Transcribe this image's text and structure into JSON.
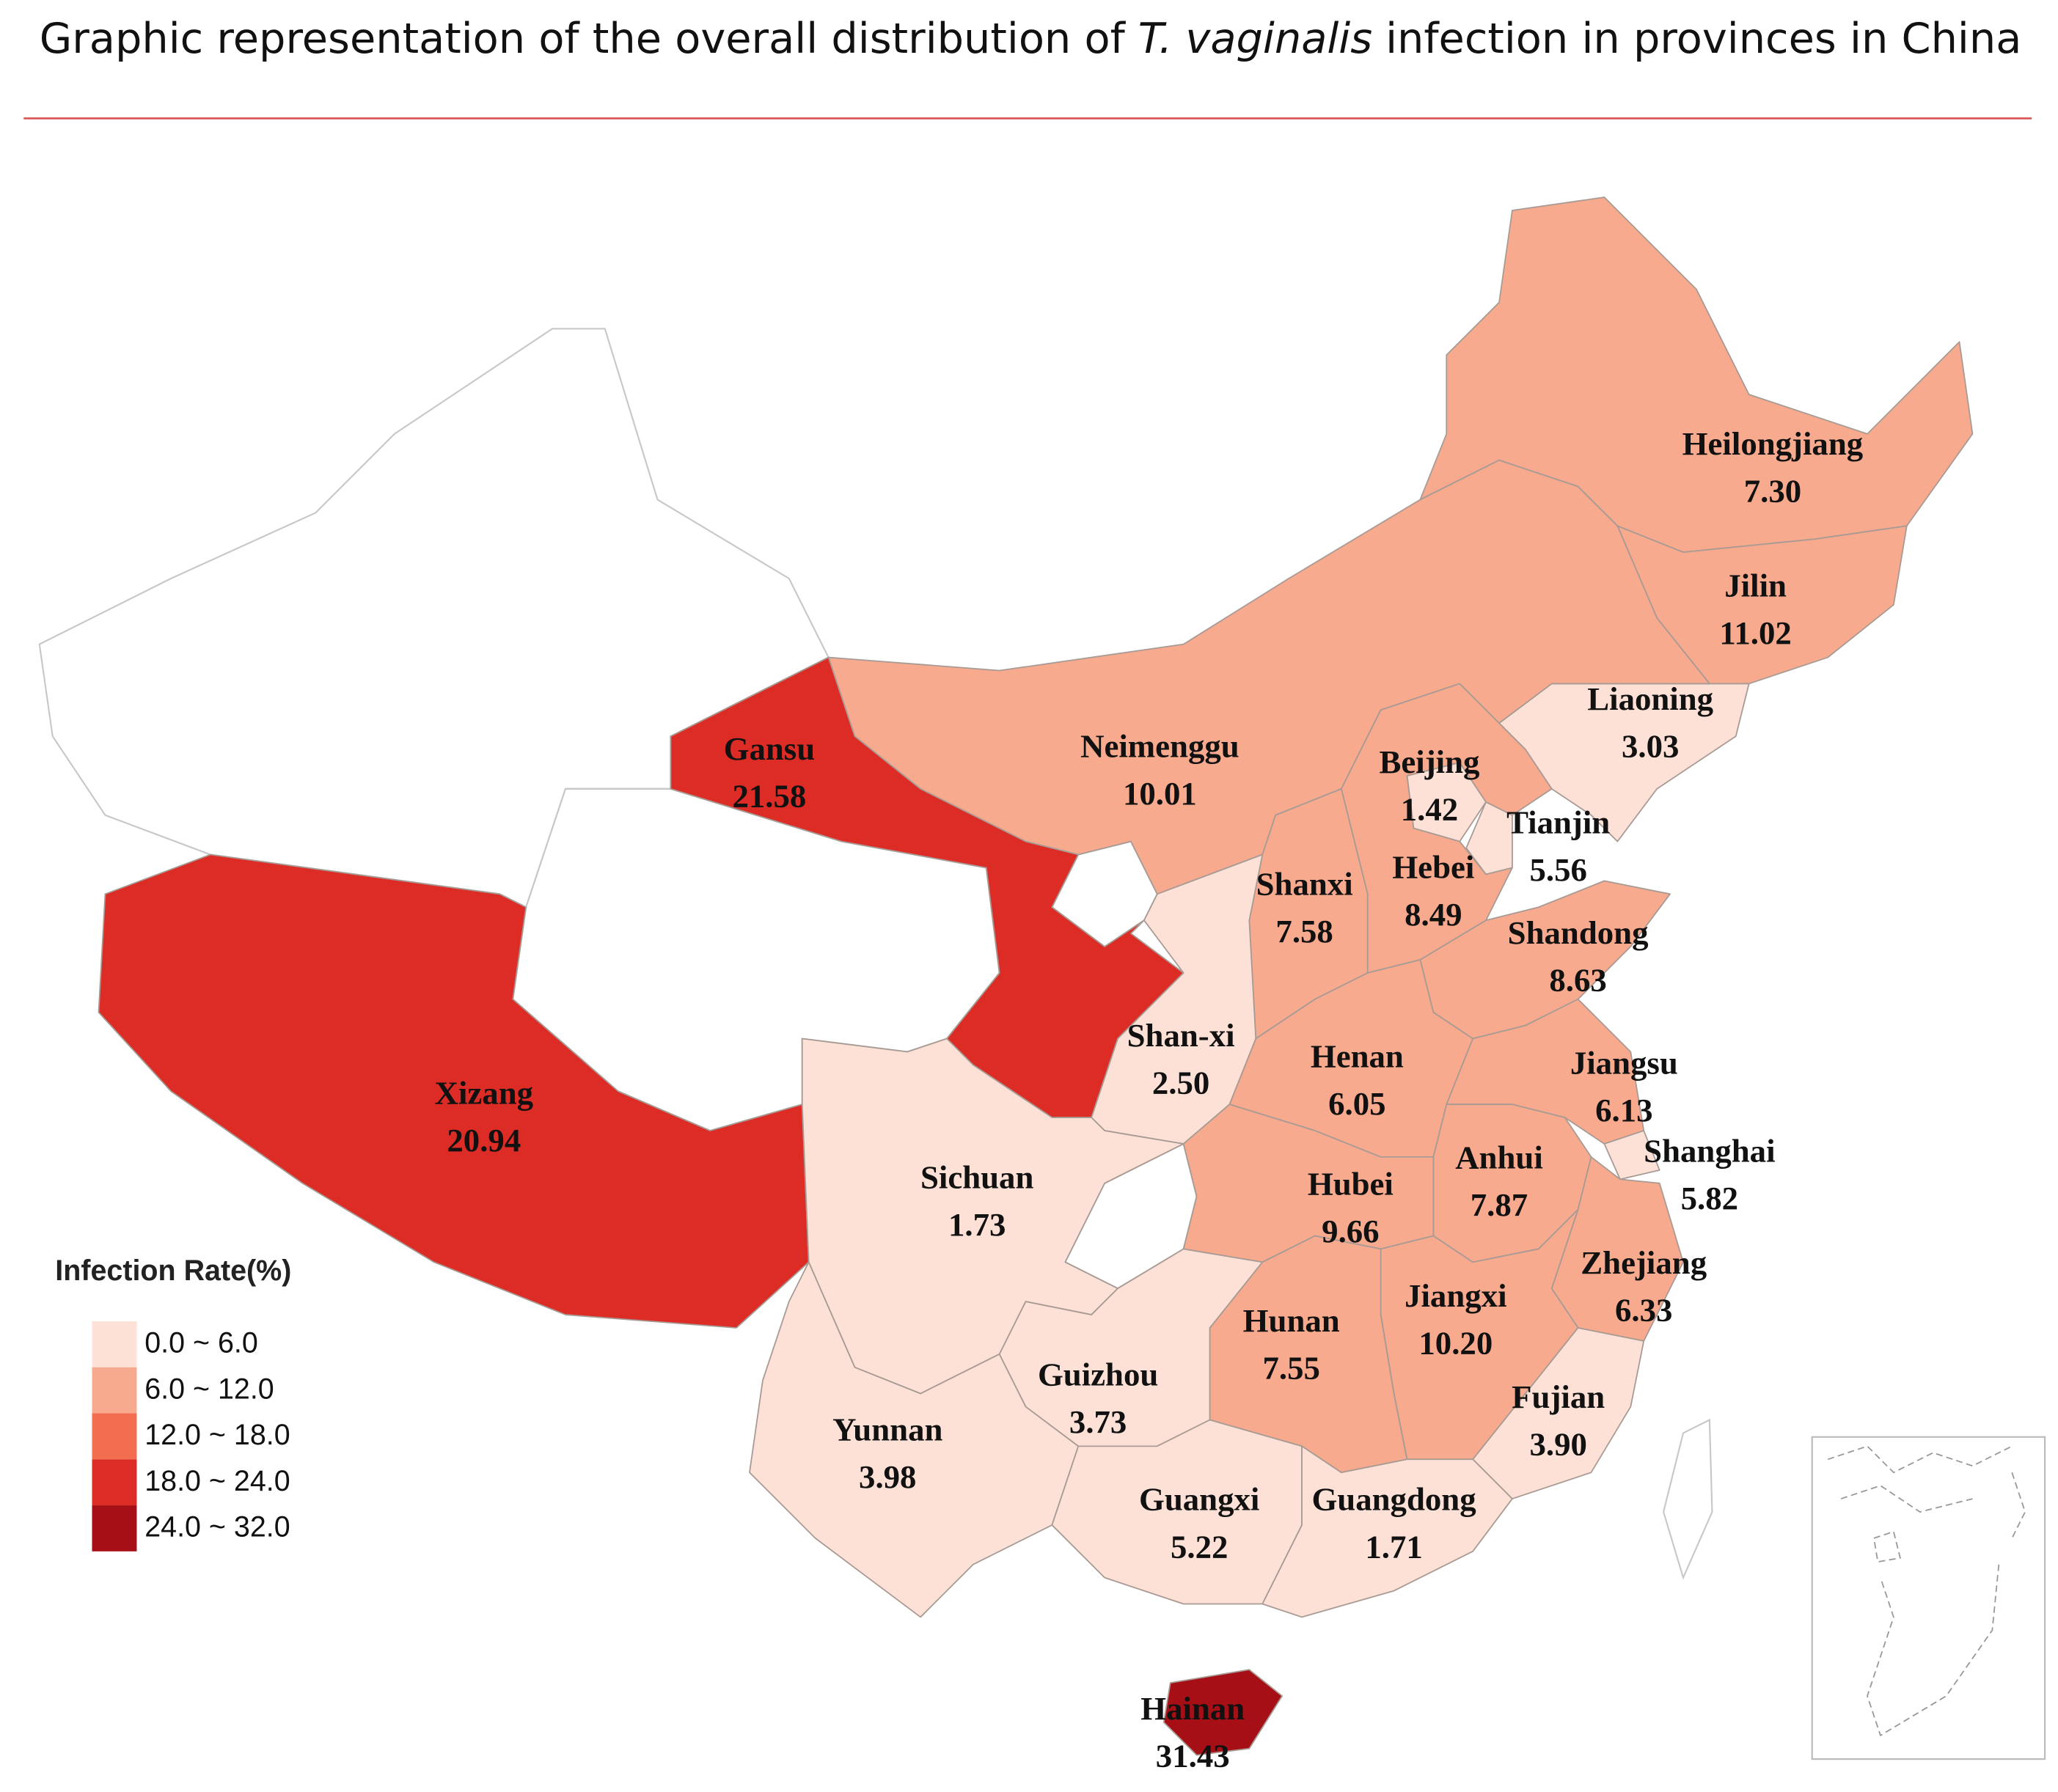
{
  "title": {
    "before": "Graphic representation of the overall distribution of",
    "species": "T. vaginalis",
    "after": "infection in provinces in China"
  },
  "chart_data": {
    "type": "choropleth",
    "categories": [
      "Heilongjiang",
      "Jilin",
      "Liaoning",
      "Neimenggu",
      "Gansu",
      "Xizang",
      "Beijing",
      "Tianjin",
      "Hebei",
      "Shanxi",
      "Shandong",
      "Shan-xi",
      "Henan",
      "Jiangsu",
      "Shanghai",
      "Anhui",
      "Hubei",
      "Sichuan",
      "Zhejiang",
      "Jiangxi",
      "Hunan",
      "Guizhou",
      "Yunnan",
      "Fujian",
      "Guangxi",
      "Guangdong",
      "Hainan"
    ],
    "values": [
      7.3,
      11.02,
      3.03,
      10.01,
      21.58,
      20.94,
      1.42,
      5.56,
      8.49,
      7.58,
      8.63,
      2.5,
      6.05,
      6.13,
      5.82,
      7.87,
      9.66,
      1.73,
      6.33,
      10.2,
      7.55,
      3.73,
      3.98,
      3.9,
      5.22,
      1.71,
      31.43
    ],
    "value_labels": [
      "7.30",
      "11.02",
      "3.03",
      "10.01",
      "21.58",
      "20.94",
      "1.42",
      "5.56",
      "8.49",
      "7.58",
      "8.63",
      "2.50",
      "6.05",
      "6.13",
      "5.82",
      "7.87",
      "9.66",
      "1.73",
      "6.33",
      "10.20",
      "7.55",
      "3.73",
      "3.98",
      "3.90",
      "5.22",
      "1.71",
      "31.43"
    ],
    "legend": {
      "title": "Infection Rate(%)",
      "bins": [
        0,
        6,
        12,
        18,
        24,
        32
      ],
      "labels": [
        "0.0 ~ 6.0",
        "6.0 ~ 12.0",
        "12.0 ~ 18.0",
        "18.0 ~ 24.0",
        "24.0 ~ 32.0"
      ],
      "colors": [
        "#fde1d6",
        "#f7aa8d",
        "#f36d50",
        "#dc2c25",
        "#a50f15"
      ]
    }
  }
}
